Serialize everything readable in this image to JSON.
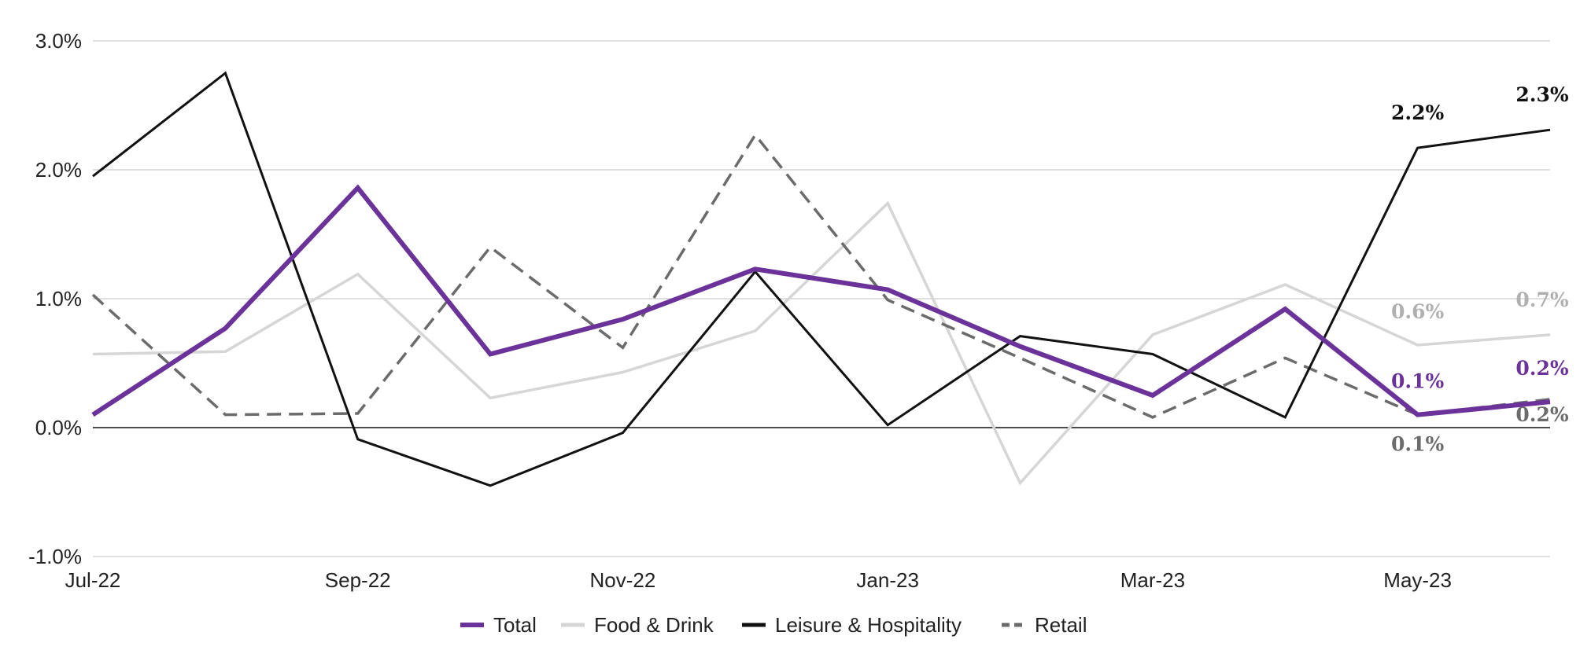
{
  "chart_data": {
    "type": "line",
    "title": "",
    "xlabel": "",
    "ylabel": "",
    "x": [
      "Jul-22",
      "Aug-22",
      "Sep-22",
      "Oct-22",
      "Nov-22",
      "Dec-22",
      "Jan-23",
      "Feb-23",
      "Mar-23",
      "Apr-23",
      "May-23",
      "Jun-23"
    ],
    "x_tick_labels": [
      "Jul-22",
      "Sep-22",
      "Nov-22",
      "Jan-23",
      "Mar-23",
      "May-23"
    ],
    "y_tick_labels": [
      "3.0%",
      "2.0%",
      "1.0%",
      "0.0%",
      "-1.0%"
    ],
    "y_ticks": [
      3.0,
      2.0,
      1.0,
      0.0,
      -1.0
    ],
    "ylim": [
      -1.0,
      3.0
    ],
    "grid": true,
    "legend_position": "bottom",
    "series": [
      {
        "name": "Food & Drink",
        "color": "#d6d6d6",
        "style": "solid",
        "values": [
          0.57,
          0.59,
          1.19,
          0.23,
          0.43,
          0.75,
          1.74,
          -0.43,
          0.72,
          1.11,
          0.64,
          0.72
        ],
        "end_labels": [
          "0.6%",
          "0.7%"
        ]
      },
      {
        "name": "Retail",
        "color": "#6b6b6b",
        "style": "dashed",
        "values": [
          1.03,
          0.1,
          0.11,
          1.4,
          0.62,
          2.27,
          0.99,
          0.54,
          0.08,
          0.54,
          0.1,
          0.22
        ],
        "end_labels": [
          "0.1%",
          "0.2%"
        ]
      },
      {
        "name": "Leisure & Hospitality",
        "color": "#111111",
        "style": "solid",
        "values": [
          1.95,
          2.75,
          -0.09,
          -0.45,
          -0.04,
          1.21,
          0.02,
          0.71,
          0.57,
          0.08,
          2.17,
          2.31
        ],
        "end_labels": [
          "2.2%",
          "2.3%"
        ]
      },
      {
        "name": "Total",
        "color": "#6b3399",
        "style": "solid",
        "values": [
          0.1,
          0.77,
          1.86,
          0.57,
          0.84,
          1.23,
          1.07,
          0.63,
          0.25,
          0.92,
          0.1,
          0.2
        ],
        "end_labels": [
          "0.1%",
          "0.2%"
        ]
      }
    ],
    "legend_order": [
      "Total",
      "Food & Drink",
      "Leisure & Hospitality",
      "Retail"
    ]
  }
}
